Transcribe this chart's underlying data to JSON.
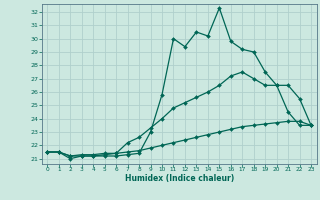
{
  "xlabel": "Humidex (Indice chaleur)",
  "bg_color": "#cce8e0",
  "grid_color": "#b0d0cc",
  "line_color": "#006655",
  "spine_color": "#557788",
  "xlim": [
    -0.5,
    23.5
  ],
  "ylim": [
    20.6,
    32.6
  ],
  "yticks": [
    21,
    22,
    23,
    24,
    25,
    26,
    27,
    28,
    29,
    30,
    31,
    32
  ],
  "xticks": [
    0,
    1,
    2,
    3,
    4,
    5,
    6,
    7,
    8,
    9,
    10,
    11,
    12,
    13,
    14,
    15,
    16,
    17,
    18,
    19,
    20,
    21,
    22,
    23
  ],
  "line1_x": [
    0,
    1,
    2,
    3,
    4,
    5,
    6,
    7,
    8,
    9,
    10,
    11,
    12,
    13,
    14,
    15,
    16,
    17,
    18,
    19,
    20,
    21,
    22,
    23
  ],
  "line1_y": [
    21.5,
    21.5,
    21.0,
    21.2,
    21.2,
    21.2,
    21.2,
    21.3,
    21.4,
    23.0,
    25.8,
    30.0,
    29.4,
    30.5,
    30.2,
    32.3,
    29.8,
    29.2,
    29.0,
    27.5,
    26.5,
    24.5,
    23.5,
    23.5
  ],
  "line2_x": [
    0,
    1,
    2,
    3,
    4,
    5,
    6,
    7,
    8,
    9,
    10,
    11,
    12,
    13,
    14,
    15,
    16,
    17,
    18,
    19,
    20,
    21,
    22,
    23
  ],
  "line2_y": [
    21.5,
    21.5,
    21.2,
    21.2,
    21.2,
    21.3,
    21.4,
    22.2,
    22.6,
    23.3,
    24.0,
    24.8,
    25.2,
    25.6,
    26.0,
    26.5,
    27.2,
    27.5,
    27.0,
    26.5,
    26.5,
    26.5,
    25.5,
    23.5
  ],
  "line3_x": [
    0,
    1,
    2,
    3,
    4,
    5,
    6,
    7,
    8,
    9,
    10,
    11,
    12,
    13,
    14,
    15,
    16,
    17,
    18,
    19,
    20,
    21,
    22,
    23
  ],
  "line3_y": [
    21.5,
    21.5,
    21.2,
    21.3,
    21.3,
    21.4,
    21.4,
    21.5,
    21.6,
    21.8,
    22.0,
    22.2,
    22.4,
    22.6,
    22.8,
    23.0,
    23.2,
    23.4,
    23.5,
    23.6,
    23.7,
    23.8,
    23.8,
    23.5
  ]
}
